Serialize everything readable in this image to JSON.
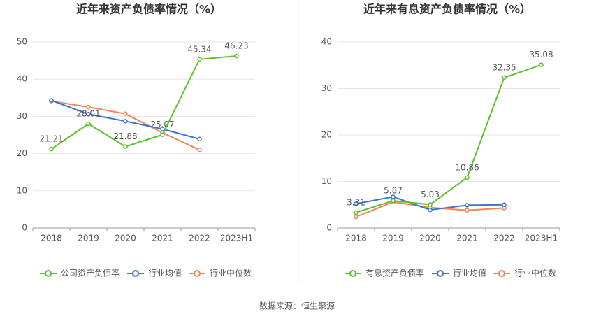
{
  "chart_data": [
    {
      "type": "line",
      "title": "近年来资产负债率情况（%）",
      "categories": [
        "2018",
        "2019",
        "2020",
        "2021",
        "2022",
        "2023H1"
      ],
      "series": [
        {
          "name": "公司资产负债率",
          "color": "#5cc12b",
          "data_labels": true,
          "values": [
            21.21,
            28.01,
            21.88,
            25.07,
            45.34,
            46.23
          ]
        },
        {
          "name": "行业均值",
          "color": "#3a75d6",
          "values": [
            34.3,
            30.6,
            28.7,
            26.6,
            23.9,
            null
          ]
        },
        {
          "name": "行业中位数",
          "color": "#f0855a",
          "values": [
            34.1,
            32.5,
            30.7,
            25.6,
            21.0,
            null
          ]
        }
      ],
      "ylim": [
        0,
        50
      ],
      "yticks": [
        0,
        10,
        20,
        30,
        40,
        50
      ],
      "grid": true
    },
    {
      "type": "line",
      "title": "近年来有息资产负债率情况（%）",
      "categories": [
        "2018",
        "2019",
        "2020",
        "2021",
        "2022",
        "2023H1"
      ],
      "series": [
        {
          "name": "有息资产负债率",
          "color": "#5cc12b",
          "data_labels": true,
          "values": [
            3.31,
            5.87,
            5.03,
            10.86,
            32.35,
            35.08
          ]
        },
        {
          "name": "行业均值",
          "color": "#3a75d6",
          "values": [
            5.2,
            6.7,
            3.9,
            4.9,
            5.0,
            null
          ]
        },
        {
          "name": "行业中位数",
          "color": "#f0855a",
          "values": [
            2.4,
            5.6,
            4.4,
            3.8,
            4.3,
            null
          ]
        }
      ],
      "ylim": [
        0,
        40
      ],
      "yticks": [
        0,
        10,
        20,
        30,
        40
      ],
      "grid": true
    }
  ],
  "source": "数据来源：恒生聚源"
}
